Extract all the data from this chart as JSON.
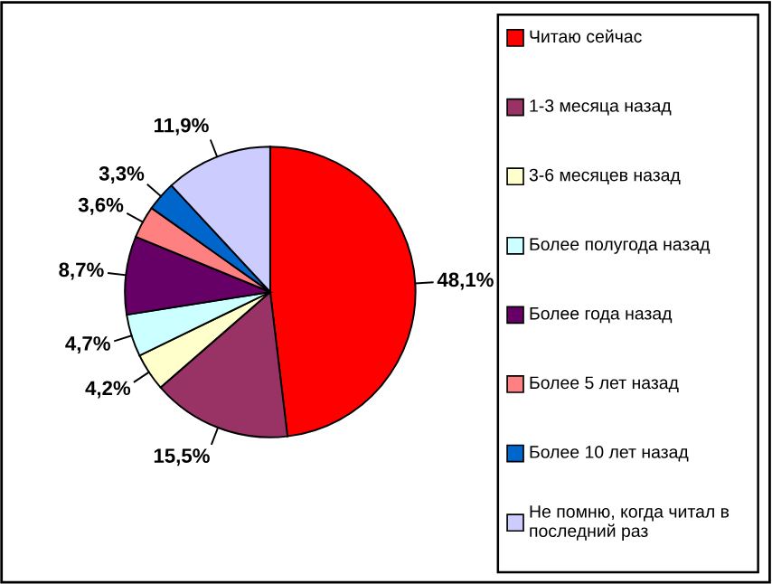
{
  "chart_data": {
    "type": "pie",
    "categories": [
      "Читаю сейчас",
      "1-3 месяца назад",
      "3-6 месяцев назад",
      "Более полугода назад",
      "Более года назад",
      "Более 5 лет назад",
      "Более 10 лет назад",
      "Не помню, когда читал в последний раз"
    ],
    "values": [
      48.1,
      15.5,
      4.2,
      4.7,
      8.7,
      3.6,
      3.3,
      11.9
    ],
    "value_labels": [
      "48,1%",
      "15,5%",
      "4,2%",
      "4,7%",
      "8,7%",
      "3,6%",
      "3,3%",
      "11,9%"
    ],
    "colors": [
      "#ff0000",
      "#993366",
      "#ffffcc",
      "#ccffff",
      "#660066",
      "#ff8080",
      "#0066cc",
      "#ccccff"
    ],
    "legend": "right"
  }
}
